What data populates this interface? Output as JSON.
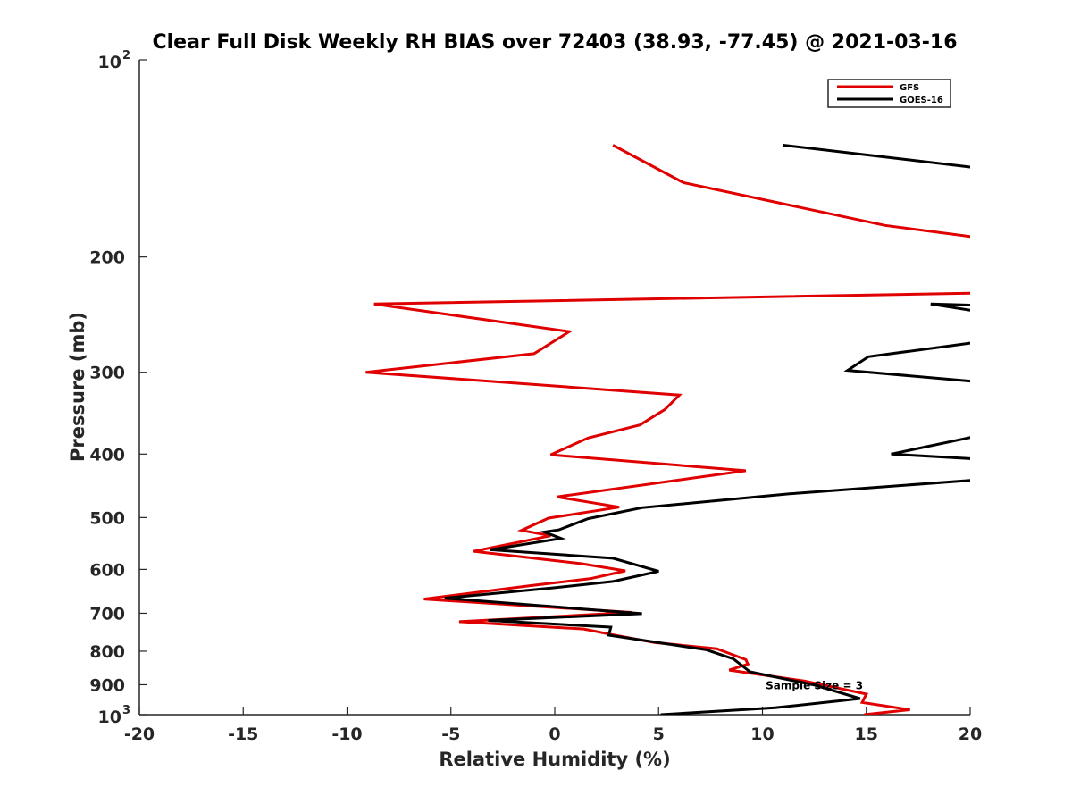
{
  "chart_data": {
    "type": "line",
    "title": "Clear Full Disk Weekly RH BIAS over 72403 (38.93, -77.45) @ 2021-03-16",
    "xlabel": "Relative Humidity (%)",
    "ylabel": "Pressure (mb)",
    "xlim": [
      -20,
      20
    ],
    "ylim": [
      100,
      1000
    ],
    "y_scale": "log",
    "y_reversed": true,
    "x_ticks": [
      -20,
      -15,
      -10,
      -5,
      0,
      5,
      10,
      15,
      20
    ],
    "x_tick_labels": [
      "-20",
      "-15",
      "-10",
      "-5",
      "0",
      "5",
      "10",
      "15",
      "20"
    ],
    "y_ticks": [
      100,
      200,
      300,
      400,
      500,
      600,
      700,
      800,
      900,
      1000
    ],
    "y_tick_labels": [
      {
        "base": "10",
        "exp": "2"
      },
      {
        "base": "200",
        "exp": ""
      },
      {
        "base": "300",
        "exp": ""
      },
      {
        "base": "400",
        "exp": ""
      },
      {
        "base": "500",
        "exp": ""
      },
      {
        "base": "600",
        "exp": ""
      },
      {
        "base": "700",
        "exp": ""
      },
      {
        "base": "800",
        "exp": ""
      },
      {
        "base": "900",
        "exp": ""
      },
      {
        "base": "10",
        "exp": "3"
      }
    ],
    "grid": false,
    "legend_position": "top-right",
    "annotation": "Sample Size = 3",
    "annotation_at": {
      "x": 12.5,
      "y": 900
    },
    "series": [
      {
        "name": "GFS",
        "color": "#e00000",
        "points": [
          {
            "x": 2.8,
            "y": 135
          },
          {
            "x": 6.2,
            "y": 154
          },
          {
            "x": 15.9,
            "y": 179
          },
          {
            "x": 20.5,
            "y": 187
          },
          {
            "x": 20.5,
            "y": 227
          },
          {
            "x": -8.7,
            "y": 236
          },
          {
            "x": 0.7,
            "y": 260
          },
          {
            "x": -1.0,
            "y": 281
          },
          {
            "x": -9.1,
            "y": 300
          },
          {
            "x": 6.0,
            "y": 325
          },
          {
            "x": 5.3,
            "y": 342
          },
          {
            "x": 4.1,
            "y": 361
          },
          {
            "x": 1.6,
            "y": 378
          },
          {
            "x": -0.2,
            "y": 401
          },
          {
            "x": 9.2,
            "y": 424
          },
          {
            "x": 0.1,
            "y": 465
          },
          {
            "x": 3.1,
            "y": 482
          },
          {
            "x": -0.3,
            "y": 501
          },
          {
            "x": -1.6,
            "y": 523
          },
          {
            "x": -0.2,
            "y": 533
          },
          {
            "x": -3.9,
            "y": 563
          },
          {
            "x": 1.3,
            "y": 588
          },
          {
            "x": 3.4,
            "y": 603
          },
          {
            "x": 1.7,
            "y": 620
          },
          {
            "x": -1.1,
            "y": 635
          },
          {
            "x": -6.3,
            "y": 666
          },
          {
            "x": 3.7,
            "y": 698
          },
          {
            "x": -4.6,
            "y": 721
          },
          {
            "x": 1.4,
            "y": 740
          },
          {
            "x": 2.6,
            "y": 753
          },
          {
            "x": 4.8,
            "y": 776
          },
          {
            "x": 7.8,
            "y": 793
          },
          {
            "x": 9.2,
            "y": 824
          },
          {
            "x": 9.3,
            "y": 837
          },
          {
            "x": 8.4,
            "y": 855
          },
          {
            "x": 12.0,
            "y": 888
          },
          {
            "x": 15.0,
            "y": 930
          },
          {
            "x": 14.8,
            "y": 958
          },
          {
            "x": 17.1,
            "y": 983
          },
          {
            "x": 14.9,
            "y": 1000
          }
        ]
      },
      {
        "name": "GOES-16",
        "color": "#000000",
        "points": [
          {
            "x": 11.0,
            "y": 135
          },
          {
            "x": 20.2,
            "y": 146
          },
          {
            "x": 20.3,
            "y": 242
          },
          {
            "x": 18.1,
            "y": 236
          },
          {
            "x": 20.3,
            "y": 237
          },
          {
            "x": 20.3,
            "y": 270
          },
          {
            "x": 15.1,
            "y": 284
          },
          {
            "x": 14.1,
            "y": 298
          },
          {
            "x": 20.3,
            "y": 310
          },
          {
            "x": 20.4,
            "y": 375
          },
          {
            "x": 16.2,
            "y": 400
          },
          {
            "x": 20.3,
            "y": 407
          },
          {
            "x": 20.3,
            "y": 438
          },
          {
            "x": 11.3,
            "y": 460
          },
          {
            "x": 4.2,
            "y": 483
          },
          {
            "x": 1.6,
            "y": 502
          },
          {
            "x": 0.2,
            "y": 522
          },
          {
            "x": -0.5,
            "y": 526
          },
          {
            "x": 0.3,
            "y": 538
          },
          {
            "x": -3.1,
            "y": 560
          },
          {
            "x": 2.8,
            "y": 577
          },
          {
            "x": 5.0,
            "y": 604
          },
          {
            "x": 2.8,
            "y": 626
          },
          {
            "x": 0.0,
            "y": 640
          },
          {
            "x": -5.3,
            "y": 664
          },
          {
            "x": 4.2,
            "y": 701
          },
          {
            "x": -3.2,
            "y": 718
          },
          {
            "x": 2.7,
            "y": 735
          },
          {
            "x": 2.6,
            "y": 756
          },
          {
            "x": 7.3,
            "y": 796
          },
          {
            "x": 8.6,
            "y": 822
          },
          {
            "x": 9.4,
            "y": 860
          },
          {
            "x": 12.5,
            "y": 901
          },
          {
            "x": 14.7,
            "y": 945
          },
          {
            "x": 10.6,
            "y": 976
          },
          {
            "x": 5.1,
            "y": 1000
          }
        ]
      }
    ]
  }
}
